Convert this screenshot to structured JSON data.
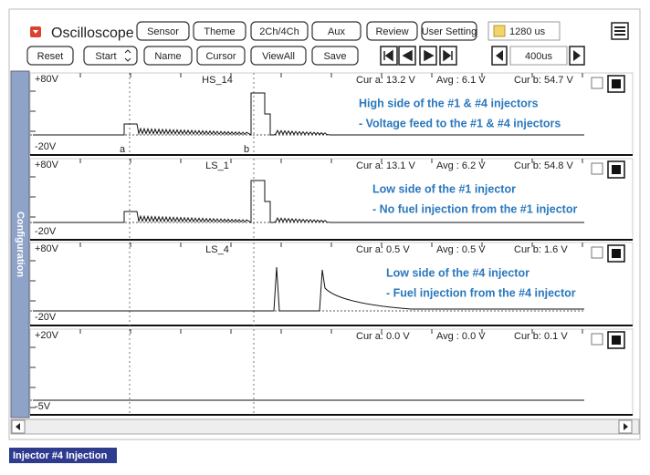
{
  "header": {
    "title": "Oscilloscope",
    "buttons": [
      "Sensor",
      "Theme",
      "2Ch/4Ch",
      "Aux",
      "Review",
      "User Setting"
    ],
    "time_base": "1280 us"
  },
  "toolbar": {
    "buttons": [
      "Reset",
      "Start",
      "Name",
      "Cursor",
      "ViewAll",
      "Save"
    ],
    "zoom": "400us"
  },
  "sidebar": "Configuration",
  "cursors": [
    "a",
    "b"
  ],
  "channels": [
    {
      "name": "HS_14",
      "top": "+80V",
      "bottom": "-20V",
      "cur_a": "Cur a: 13.2 V",
      "avg": "Avg : 6.1 V",
      "cur_b": "Cur b: 54.7 V",
      "notes": [
        "High side  of the #1 & #4 injectors",
        "- Voltage feed to  the #1 & #4 injectors"
      ]
    },
    {
      "name": "LS_1",
      "top": "+80V",
      "bottom": "-20V",
      "cur_a": "Cur a: 13.1 V",
      "avg": "Avg : 6.2 V",
      "cur_b": "Cur b: 54.8 V",
      "notes": [
        "Low side of the #1 injector",
        "- No fuel injection from   the #1 injector"
      ]
    },
    {
      "name": "LS_4",
      "top": "+80V",
      "bottom": "-20V",
      "cur_a": "Cur a: 0.5 V",
      "avg": "Avg : 0.5 V",
      "cur_b": "Cur b: 1.6 V",
      "notes": [
        "Low side of the #4 injector",
        "- Fuel injection from the #4 injector"
      ]
    },
    {
      "name": "",
      "top": "+20V",
      "bottom": "-5V",
      "cur_a": "Cur a: 0.0 V",
      "avg": "Avg : 0.0 V",
      "cur_b": "Cur b: 0.1 V",
      "notes": []
    }
  ],
  "caption": "Injector #4 Injection"
}
